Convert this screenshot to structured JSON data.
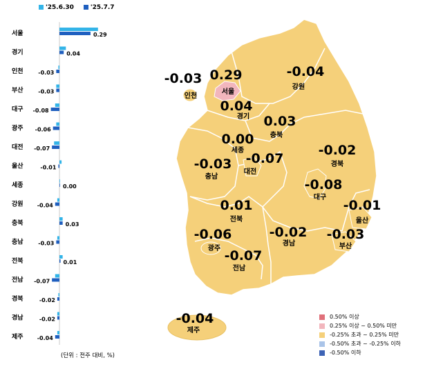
{
  "chart_data": {
    "type": "bar",
    "orientation": "horizontal",
    "categories": [
      "서울",
      "경기",
      "인천",
      "부산",
      "대구",
      "광주",
      "대전",
      "울산",
      "세종",
      "강원",
      "충북",
      "충남",
      "전북",
      "전남",
      "경북",
      "경남",
      "제주"
    ],
    "series": [
      {
        "name": "'25.6.30",
        "color": "#33b4e8",
        "values": [
          0.36,
          0.06,
          -0.01,
          -0.03,
          -0.04,
          -0.03,
          -0.05,
          0.02,
          0.0,
          -0.02,
          0.03,
          -0.02,
          0.03,
          -0.04,
          -0.01,
          -0.02,
          -0.02
        ]
      },
      {
        "name": "'25.7.7",
        "color": "#1f5fbf",
        "values": [
          0.29,
          0.04,
          -0.03,
          -0.03,
          -0.08,
          -0.06,
          -0.07,
          -0.01,
          0.0,
          -0.04,
          0.03,
          -0.03,
          0.01,
          -0.07,
          -0.02,
          -0.02,
          -0.04
        ]
      }
    ],
    "value_labels": [
      "0.29",
      "0.04",
      "-0.03",
      "-0.03",
      "-0.08",
      "-0.06",
      "-0.07",
      "-0.01",
      "0.00",
      "-0.04",
      "0.03",
      "-0.03",
      "0.01",
      "-0.07",
      "-0.02",
      "-0.02",
      "-0.04"
    ],
    "xlim": [
      -0.1,
      0.4
    ],
    "xlabel": "",
    "ylabel": "",
    "title": ""
  },
  "unit_note": "(단위 : 전주 대비, %)",
  "map": {
    "regions": [
      {
        "name": "서울",
        "value": "0.29",
        "fill": "#f2b6bd"
      },
      {
        "name": "인천",
        "value": "-0.03",
        "fill": "#f5d07a"
      },
      {
        "name": "경기",
        "value": "0.04",
        "fill": "#f5d07a"
      },
      {
        "name": "강원",
        "value": "-0.04",
        "fill": "#f5d07a"
      },
      {
        "name": "충북",
        "value": "0.03",
        "fill": "#f5d07a"
      },
      {
        "name": "세종",
        "value": "0.00",
        "fill": "#f5d07a"
      },
      {
        "name": "대전",
        "value": "-0.07",
        "fill": "#f5d07a"
      },
      {
        "name": "충남",
        "value": "-0.03",
        "fill": "#f5d07a"
      },
      {
        "name": "경북",
        "value": "-0.02",
        "fill": "#f5d07a"
      },
      {
        "name": "대구",
        "value": "-0.08",
        "fill": "#f5d07a"
      },
      {
        "name": "울산",
        "value": "-0.01",
        "fill": "#f5d07a"
      },
      {
        "name": "전북",
        "value": "0.01",
        "fill": "#f5d07a"
      },
      {
        "name": "광주",
        "value": "-0.06",
        "fill": "#f5d07a"
      },
      {
        "name": "경남",
        "value": "-0.02",
        "fill": "#f5d07a"
      },
      {
        "name": "부산",
        "value": "-0.03",
        "fill": "#f5d07a"
      },
      {
        "name": "전남",
        "value": "-0.07",
        "fill": "#f5d07a"
      },
      {
        "name": "제주",
        "value": "-0.04",
        "fill": "#f5d07a"
      }
    ]
  },
  "legend": [
    {
      "label": "0.50% 이상",
      "color": "#e0707a"
    },
    {
      "label": "0.25% 이상 ~ 0.50% 미만",
      "color": "#f2b6bd"
    },
    {
      "label": "-0.25% 초과 ~ 0.25% 미만",
      "color": "#f5d07a"
    },
    {
      "label": "-0.50% 초과 ~ -0.25% 이하",
      "color": "#aac4e8"
    },
    {
      "label": "-0.50% 이하",
      "color": "#3d63b5"
    }
  ]
}
